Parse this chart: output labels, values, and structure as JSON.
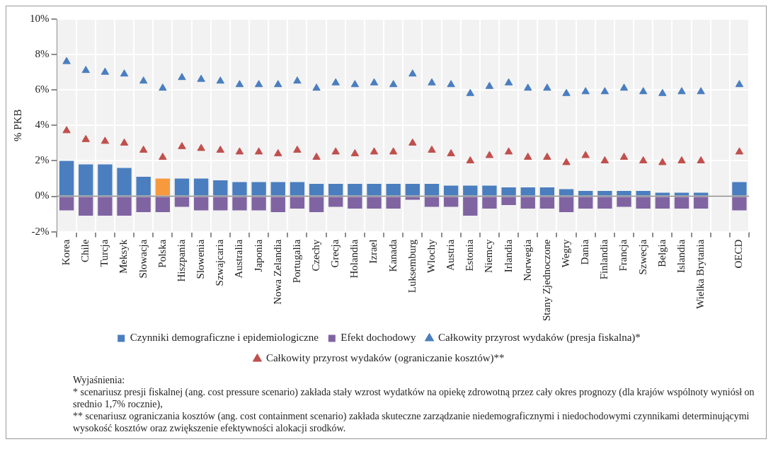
{
  "chart_data": {
    "type": "bar",
    "ylabel": "% PKB",
    "categories": [
      "Korea",
      "Chile",
      "Turcja",
      "Meksyk",
      "Slowacja",
      "Polska",
      "Hiszpania",
      "Slowenia",
      "Szwajcaria",
      "Australia",
      "Japonia",
      "Nowa Zelandia",
      "Portugalia",
      "Czechy",
      "Grecja",
      "Holandia",
      "Izrael",
      "Kanada",
      "Luksemburg",
      "Wlochy",
      "Austria",
      "Estonia",
      "Niemcy",
      "Irlandia",
      "Norwegia",
      "Stany Zjednoczone",
      "Wegry",
      "Dania",
      "Finlandia",
      "Francja",
      "Szwecja",
      "Belgia",
      "Islandia",
      "Wielka Brytania",
      null,
      "OECD"
    ],
    "stacked": true,
    "series": [
      {
        "name": "Czynniki demograficzne i epidemiologiczne",
        "color": "#4a7ebf",
        "colors": [
          "#4a7ebf",
          "#4a7ebf",
          "#4a7ebf",
          "#4a7ebf",
          "#4a7ebf",
          "#f79a3e",
          "#4a7ebf",
          "#4a7ebf",
          "#4a7ebf",
          "#4a7ebf",
          "#4a7ebf",
          "#4a7ebf",
          "#4a7ebf",
          "#4a7ebf",
          "#4a7ebf",
          "#4a7ebf",
          "#4a7ebf",
          "#4a7ebf",
          "#4a7ebf",
          "#4a7ebf",
          "#4a7ebf",
          "#4a7ebf",
          "#4a7ebf",
          "#4a7ebf",
          "#4a7ebf",
          "#4a7ebf",
          "#4a7ebf",
          "#4a7ebf",
          "#4a7ebf",
          "#4a7ebf",
          "#4a7ebf",
          "#4a7ebf",
          "#4a7ebf",
          "#4a7ebf",
          "#4a7ebf",
          "#4a7ebf"
        ],
        "values": [
          2.0,
          1.8,
          1.8,
          1.6,
          1.1,
          1.0,
          1.0,
          1.0,
          0.9,
          0.8,
          0.8,
          0.8,
          0.8,
          0.7,
          0.7,
          0.7,
          0.7,
          0.7,
          0.7,
          0.7,
          0.6,
          0.6,
          0.6,
          0.5,
          0.5,
          0.5,
          0.4,
          0.3,
          0.3,
          0.3,
          0.3,
          0.2,
          0.2,
          0.2,
          null,
          0.8
        ]
      },
      {
        "name": "Efekt dochodowy",
        "color": "#8064a2",
        "values": [
          -0.8,
          -1.1,
          -1.1,
          -1.1,
          -0.9,
          -0.9,
          -0.6,
          -0.8,
          -0.8,
          -0.8,
          -0.8,
          -0.9,
          -0.7,
          -0.9,
          -0.6,
          -0.7,
          -0.7,
          -0.7,
          -0.2,
          -0.6,
          -0.6,
          -1.1,
          -0.7,
          -0.5,
          -0.7,
          -0.7,
          -0.9,
          -0.7,
          -0.7,
          -0.6,
          -0.7,
          -0.7,
          -0.7,
          -0.7,
          null,
          -0.8
        ]
      },
      {
        "name": "Całkowity przyrost wydaków (presja fiskalna)*",
        "type": "scatter",
        "color": "#4a7ebf",
        "values": [
          7.6,
          7.1,
          7.0,
          6.9,
          6.5,
          6.1,
          6.7,
          6.6,
          6.5,
          6.3,
          6.3,
          6.3,
          6.5,
          6.1,
          6.4,
          6.3,
          6.4,
          6.3,
          6.9,
          6.4,
          6.3,
          5.8,
          6.2,
          6.4,
          6.1,
          6.1,
          5.8,
          5.9,
          5.9,
          6.1,
          5.9,
          5.8,
          5.9,
          5.9,
          null,
          6.3
        ]
      },
      {
        "name": "Całkowity przyrost wydaków (ograniczanie kosztów)**",
        "type": "scatter",
        "color": "#c0504d",
        "values": [
          3.7,
          3.2,
          3.1,
          3.0,
          2.6,
          2.2,
          2.8,
          2.7,
          2.6,
          2.5,
          2.5,
          2.4,
          2.6,
          2.2,
          2.5,
          2.4,
          2.5,
          2.5,
          3.0,
          2.6,
          2.4,
          2.0,
          2.3,
          2.5,
          2.2,
          2.2,
          1.9,
          2.3,
          2.0,
          2.2,
          2.0,
          1.9,
          2.0,
          2.0,
          null,
          2.5
        ]
      }
    ],
    "marker": "triangle",
    "ylim": [
      -2,
      10
    ],
    "yticks": [
      {
        "value": -2,
        "label": "-2%"
      },
      {
        "value": 0,
        "label": "0%"
      },
      {
        "value": 2,
        "label": "2%"
      },
      {
        "value": 4,
        "label": "4%"
      },
      {
        "value": 6,
        "label": "6%"
      },
      {
        "value": 8,
        "label": "8%"
      },
      {
        "value": 10,
        "label": "10%"
      }
    ],
    "grid": true,
    "legend": "bottom",
    "annotations": [
      "Wyjaśnienia:",
      "* scenariusz presji fiskalnej (ang. cost pressure scenario) zakłada stały wzrost wydatków na opiekę zdrowotną przez cały okres prognozy (dla krajów wspólnoty wyniósł on srednio 1,7% rocznie),",
      "** scenariusz ograniczania kosztów (ang. cost containment scenario) zakłada skuteczne zarządzanie niedemograficznymi i niedochodowymi czynnikami determinującymi wysokość kosztów oraz zwiększenie efektywności alokacji srodków."
    ]
  }
}
